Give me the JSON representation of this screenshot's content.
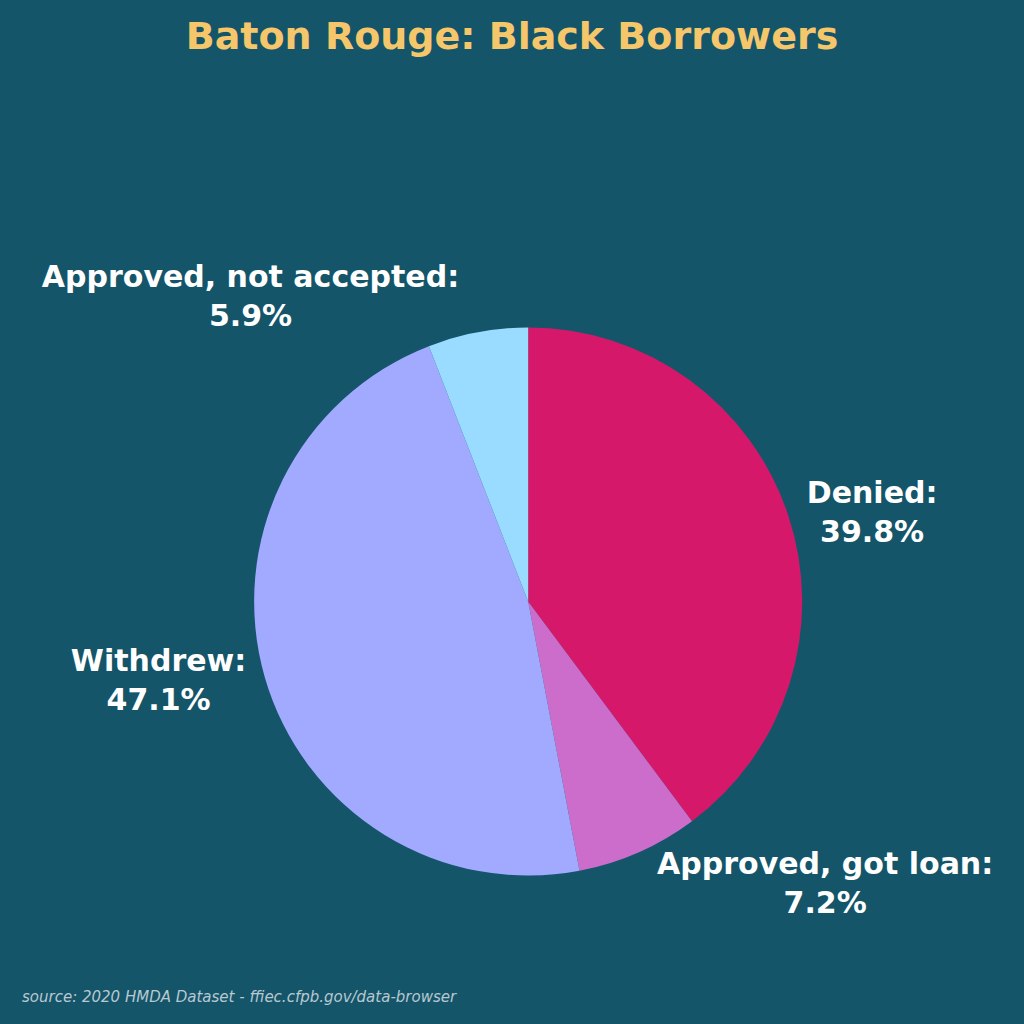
{
  "chart_data": {
    "type": "pie",
    "title": "Baton Rouge: Black Borrowers",
    "categories": [
      "Denied:",
      "Approved, got loan:",
      "Withdrew:",
      "Approved, not accepted:"
    ],
    "values": [
      39.8,
      7.2,
      47.1,
      5.9
    ],
    "value_labels": [
      "39.8%",
      "7.2%",
      "47.1%",
      "5.9%"
    ],
    "colors": [
      "#d6186a",
      "#cc6dcc",
      "#a1aaff",
      "#99dcff"
    ],
    "data_labels": true,
    "source": "source: 2020 HMDA Dataset - ffiec.cfpb.gov/data-browser"
  }
}
